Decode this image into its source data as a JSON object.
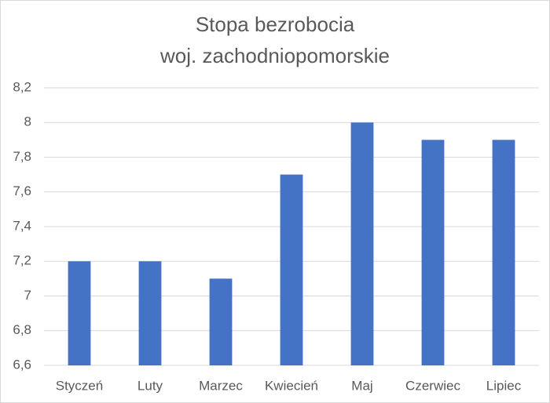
{
  "chart_data": {
    "type": "bar",
    "title": "Stopa bezrobocia",
    "subtitle": "woj. zachodniopomorskie",
    "categories": [
      "Styczeń",
      "Luty",
      "Marzec",
      "Kwiecień",
      "Maj",
      "Czerwiec",
      "Lipiec"
    ],
    "values": [
      7.2,
      7.2,
      7.1,
      7.7,
      8,
      7.9,
      7.9
    ],
    "color": "#4472c4",
    "ylim": [
      6.6,
      8.2
    ],
    "yticks": [
      {
        "value": 6.6,
        "label": "6,6"
      },
      {
        "value": 6.8,
        "label": "6,8"
      },
      7,
      {
        "value": 7.2,
        "label": "7,2"
      },
      {
        "value": 7.4,
        "label": "7,4"
      },
      {
        "value": 7.6,
        "label": "7,6"
      },
      {
        "value": 7.8,
        "label": "7,8"
      },
      8,
      {
        "value": 8.2,
        "label": "8,2"
      }
    ],
    "grid": true
  }
}
